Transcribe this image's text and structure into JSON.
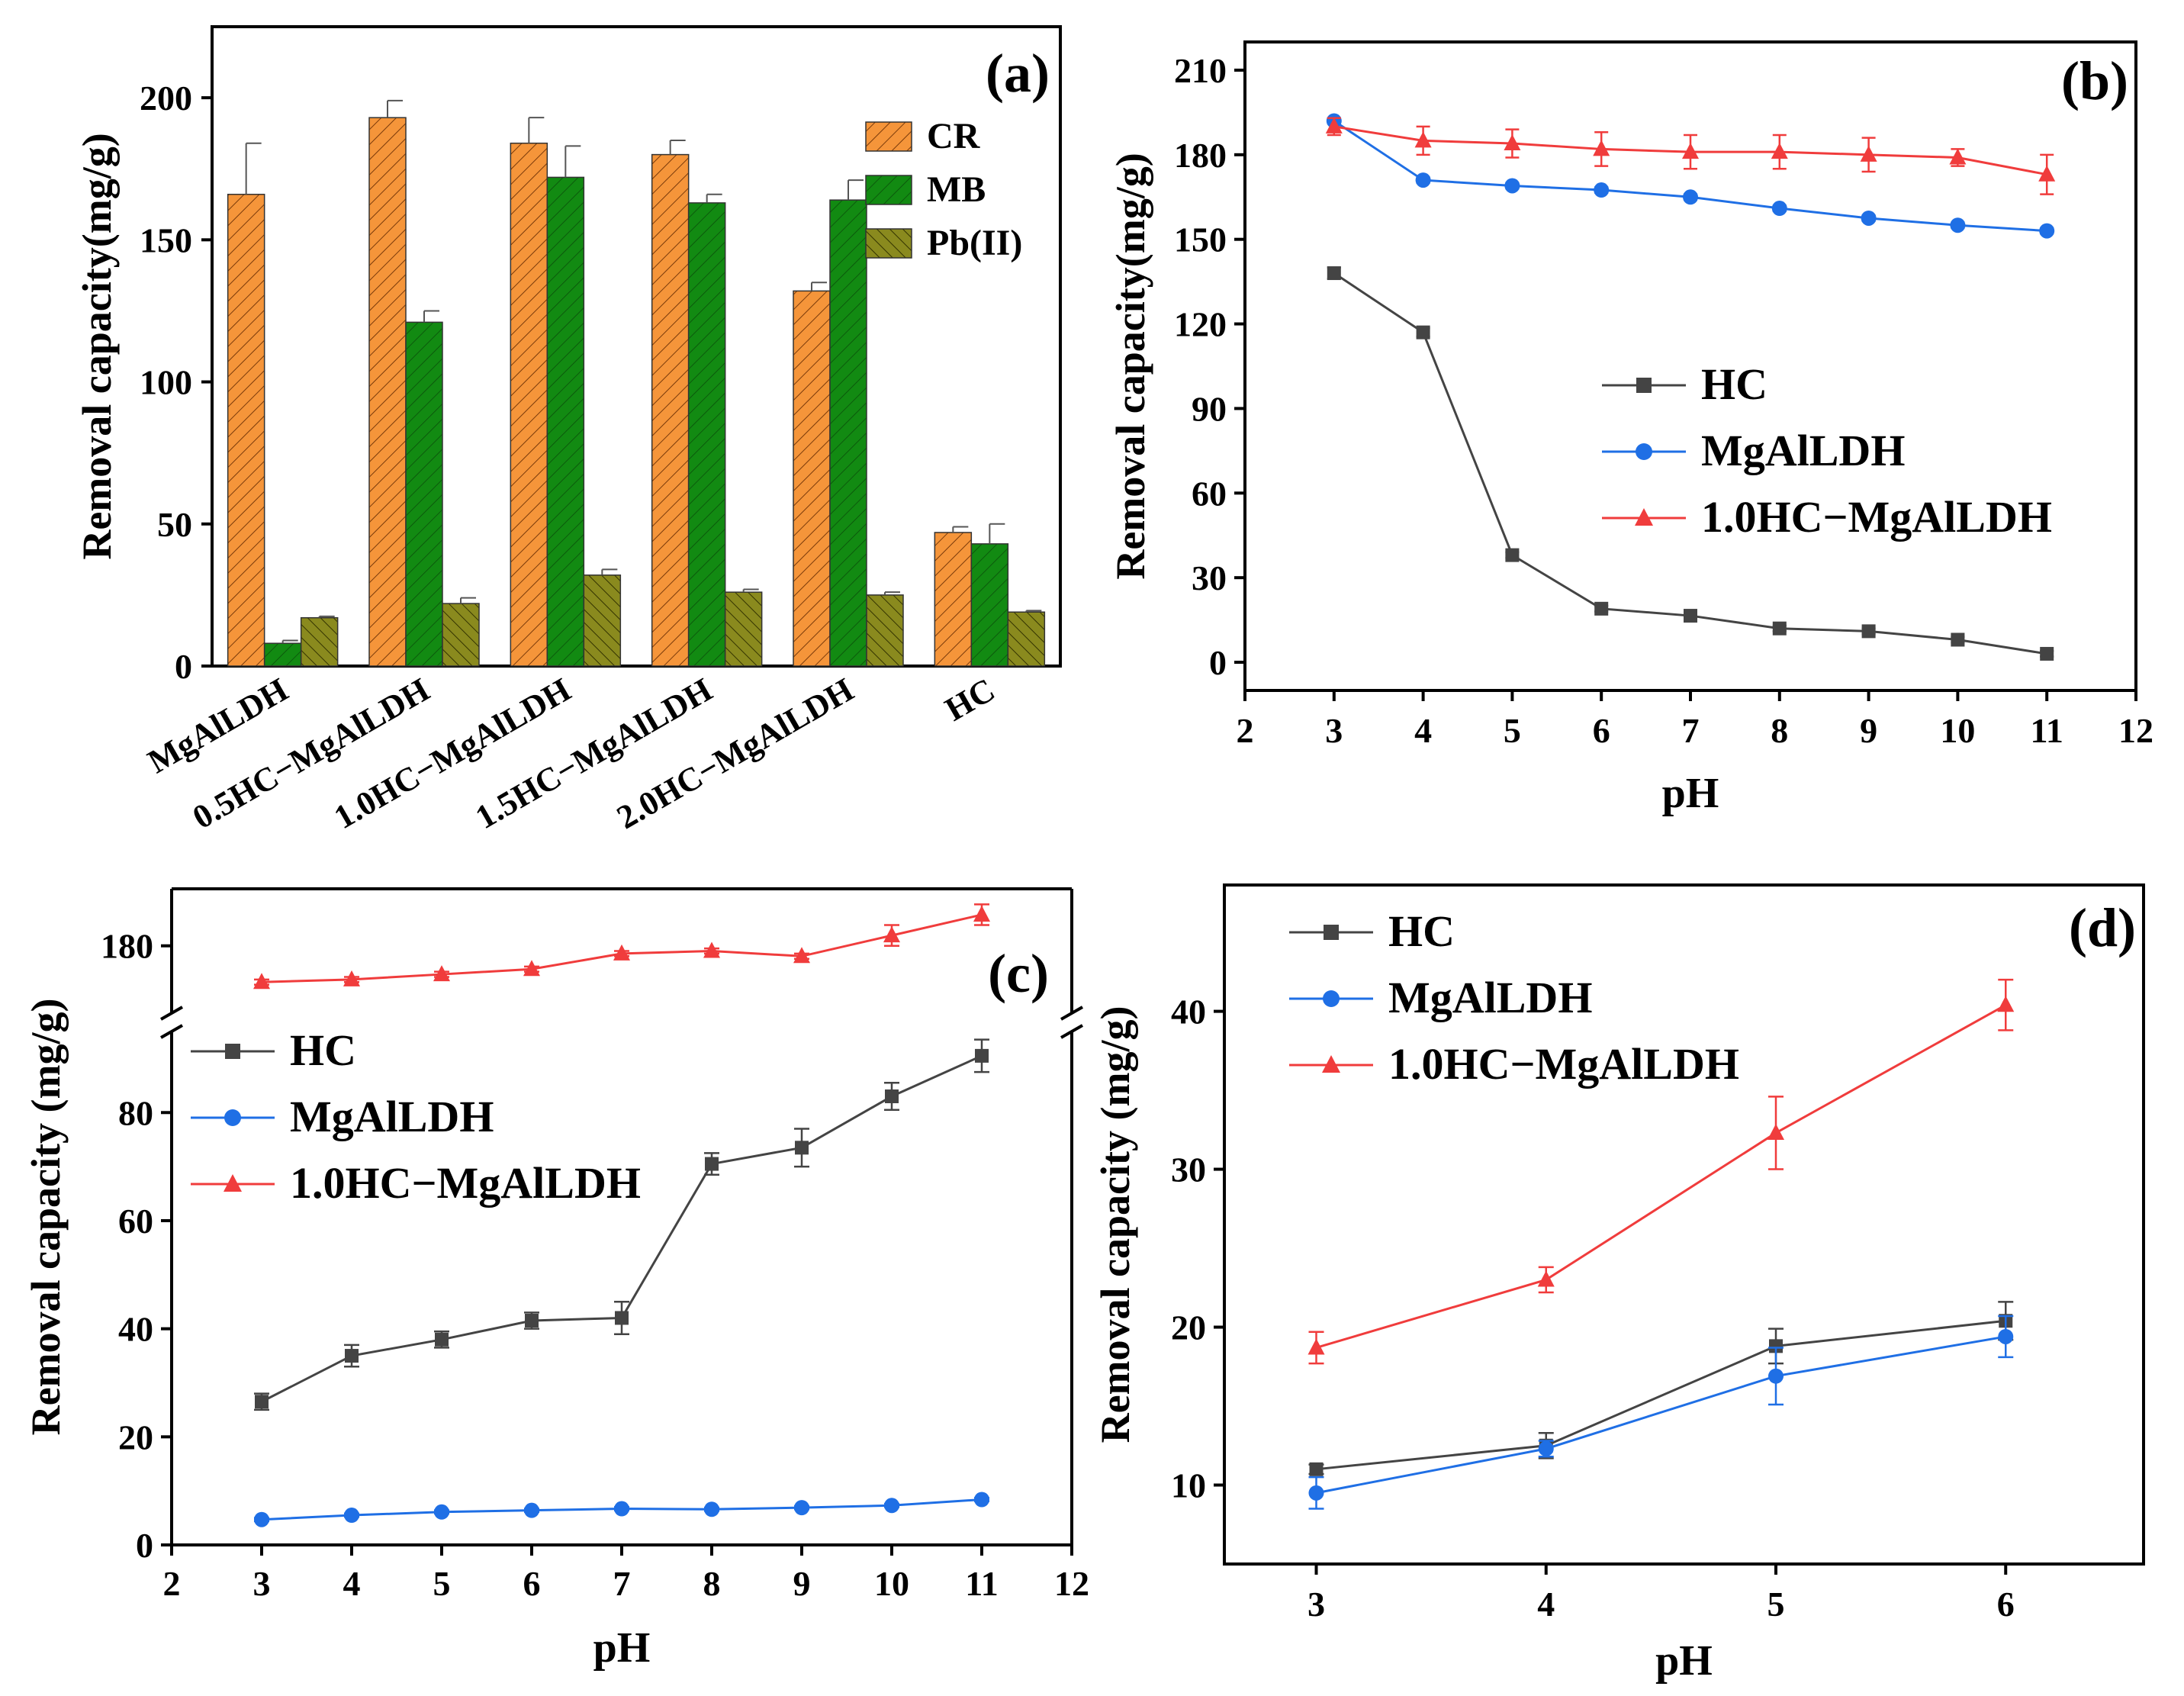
{
  "colors": {
    "cr_fill": "#F5953A",
    "mb_fill": "#128A12",
    "pb_fill": "#8A8A1E",
    "hc": "#444444",
    "mgal": "#1F6FE5",
    "hcmgal": "#F03C3C",
    "axis": "#000000"
  },
  "chart_data": [
    {
      "panel": "a",
      "type": "bar",
      "panel_label": "(a)",
      "ylabel": "Removal capacity(mg/g)",
      "xlabel": "",
      "ylim": [
        0,
        225
      ],
      "yticks": [
        "0",
        "50",
        "100",
        "150",
        "200"
      ],
      "categories": [
        "MgAlLDH",
        "0.5HC−MgAlLDH",
        "1.0HC−MgAlLDH",
        "1.5HC−MgAlLDH",
        "2.0HC−MgAlLDH",
        "HC"
      ],
      "series": [
        {
          "name": "CR",
          "values": [
            166,
            193,
            184,
            180,
            132,
            47
          ],
          "errors": [
            18,
            6,
            9,
            5,
            3,
            2
          ]
        },
        {
          "name": "MB",
          "values": [
            8,
            121,
            172,
            163,
            164,
            43
          ],
          "errors": [
            1,
            4,
            11,
            3,
            7,
            7
          ]
        },
        {
          "name": "Pb(II)",
          "values": [
            17,
            22,
            32,
            26,
            25,
            19
          ],
          "errors": [
            0.5,
            2,
            2,
            1,
            1,
            0.5
          ]
        }
      ],
      "legend": [
        "CR",
        "MB",
        "Pb(II)"
      ]
    },
    {
      "panel": "b",
      "type": "line",
      "panel_label": "(b)",
      "ylabel": "Removal capacity(mg/g)",
      "xlabel": "pH",
      "xlim": [
        2,
        12
      ],
      "ylim": [
        -10,
        220
      ],
      "xticks": [
        "2",
        "3",
        "4",
        "5",
        "6",
        "7",
        "8",
        "9",
        "10",
        "11",
        "12"
      ],
      "yticks": [
        "0",
        "30",
        "60",
        "90",
        "120",
        "150",
        "180",
        "210"
      ],
      "x": [
        3,
        4,
        5,
        6,
        7,
        8,
        9,
        10,
        11
      ],
      "series": [
        {
          "name": "HC",
          "values": [
            138,
            117,
            38,
            19,
            16.5,
            12,
            11,
            8,
            3
          ],
          "errors": [
            2,
            1.5,
            1,
            1,
            1,
            1,
            1,
            1,
            1
          ]
        },
        {
          "name": "MgAlLDH",
          "values": [
            192,
            171,
            169,
            167.5,
            165,
            161,
            157.5,
            155,
            153
          ],
          "errors": [
            1,
            1,
            1,
            1,
            1,
            1,
            1,
            1,
            1
          ]
        },
        {
          "name": "1.0HC−MgAlLDH",
          "values": [
            190,
            185,
            184,
            182,
            181,
            181,
            180,
            179,
            173
          ],
          "errors": [
            3,
            5,
            5,
            6,
            6,
            6,
            6,
            3,
            7
          ]
        }
      ],
      "legend": [
        "HC",
        "MgAlLDH",
        "1.0HC−MgAlLDH"
      ]
    },
    {
      "panel": "c",
      "type": "line",
      "panel_label": "(c)",
      "ylabel": "Removal capacity (mg/g)",
      "xlabel": "pH",
      "xlim": [
        2,
        12
      ],
      "ylim_lower": [
        0,
        95
      ],
      "ylim_upper": [
        167,
        191
      ],
      "axis_break": true,
      "xticks": [
        "2",
        "3",
        "4",
        "5",
        "6",
        "7",
        "8",
        "9",
        "10",
        "11",
        "12"
      ],
      "yticks_lower": [
        "0",
        "20",
        "40",
        "60",
        "80"
      ],
      "yticks_upper": [
        "180"
      ],
      "x": [
        3,
        4,
        5,
        6,
        7,
        8,
        9,
        10,
        11
      ],
      "series": [
        {
          "name": "HC",
          "values": [
            26.5,
            35,
            38,
            41.5,
            42,
            70.5,
            73.5,
            83,
            90.5
          ],
          "errors": [
            1.5,
            2,
            1.5,
            1.5,
            3,
            2,
            3.5,
            2.5,
            3
          ]
        },
        {
          "name": "MgAlLDH",
          "values": [
            4.7,
            5.5,
            6.1,
            6.4,
            6.7,
            6.6,
            6.9,
            7.3,
            8.4
          ],
          "errors": [
            0.3,
            0.3,
            0.3,
            0.3,
            0.3,
            0.3,
            0.3,
            0.3,
            0.3
          ]
        },
        {
          "name": "1.0HC−MgAlLDH",
          "values": [
            173,
            173.5,
            174.5,
            175.5,
            178.5,
            179,
            178,
            182,
            186
          ],
          "errors": [
            0.5,
            0.5,
            0.5,
            0.5,
            0.5,
            0.5,
            0.5,
            2,
            2
          ]
        }
      ],
      "legend": [
        "HC",
        "MgAlLDH",
        "1.0HC−MgAlLDH"
      ]
    },
    {
      "panel": "d",
      "type": "line",
      "panel_label": "(d)",
      "ylabel": "Removal capacity (mg/g)",
      "xlabel": "pH",
      "xlim": [
        2.6,
        6.6
      ],
      "ylim": [
        5,
        48
      ],
      "xticks": [
        "3",
        "4",
        "5",
        "6"
      ],
      "yticks": [
        "10",
        "20",
        "30",
        "40"
      ],
      "x": [
        3,
        4,
        5,
        6
      ],
      "series": [
        {
          "name": "HC",
          "values": [
            11,
            12.5,
            18.8,
            20.4
          ],
          "errors": [
            0.3,
            0.8,
            1.1,
            1.2
          ]
        },
        {
          "name": "MgAlLDH",
          "values": [
            9.5,
            12.3,
            16.9,
            19.4
          ],
          "errors": [
            1,
            0.5,
            1.8,
            1.3
          ]
        },
        {
          "name": "1.0HC−MgAlLDH",
          "values": [
            18.7,
            23,
            32.3,
            40.4
          ],
          "errors": [
            1,
            0.8,
            2.3,
            1.6
          ]
        }
      ],
      "legend": [
        "HC",
        "MgAlLDH",
        "1.0HC−MgAlLDH"
      ]
    }
  ]
}
